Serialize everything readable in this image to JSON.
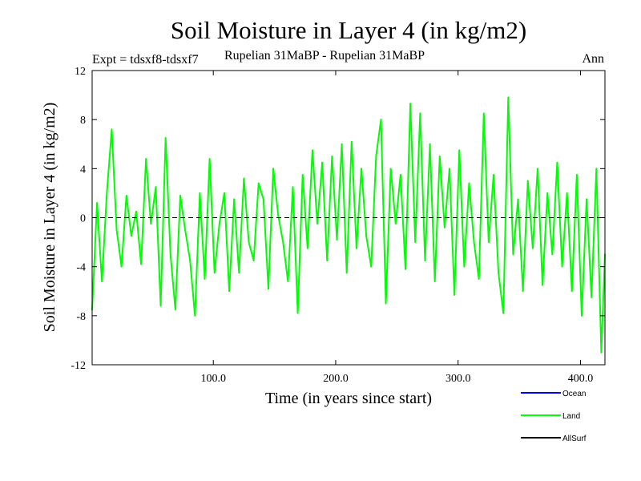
{
  "chart_data": {
    "type": "line",
    "title": "Soil Moisture in Layer 4 (in kg/m2)",
    "subtitle_left": "Expt = tdsxf8-tdsxf7",
    "subtitle_center": "Rupelian  31MaBP - Rupelian  31MaBP",
    "subtitle_right": "Ann",
    "xlabel": "Time (in years since start)",
    "ylabel": "Soil Moisture in Layer 4 (in kg/m2)",
    "xlim": [
      1,
      420
    ],
    "ylim": [
      -12,
      12
    ],
    "xticks": [
      100,
      200,
      300,
      400
    ],
    "xtick_labels": [
      "100.0",
      "200.0",
      "300.0",
      "400.0"
    ],
    "yticks": [
      -12,
      -8,
      -4,
      0,
      4,
      8,
      12
    ],
    "ytick_labels": [
      "-12",
      "-8",
      "-4",
      "0",
      "4",
      "8",
      "12"
    ],
    "zero_line": true,
    "legend": {
      "placement": "bottom-right",
      "entries": [
        {
          "label": "Ocean",
          "color": "#0000ff"
        },
        {
          "label": "Land",
          "color": "#00ff00"
        },
        {
          "label": "AllSurf",
          "color": "#000000"
        }
      ]
    },
    "series": [
      {
        "name": "Land",
        "color": "#00ff00",
        "x": [
          1,
          5,
          9,
          13,
          17,
          21,
          25,
          29,
          33,
          37,
          41,
          45,
          49,
          53,
          57,
          61,
          65,
          69,
          73,
          77,
          81,
          85,
          89,
          93,
          97,
          101,
          105,
          109,
          113,
          117,
          121,
          125,
          129,
          133,
          137,
          141,
          145,
          149,
          153,
          157,
          161,
          165,
          169,
          173,
          177,
          181,
          185,
          189,
          193,
          197,
          201,
          205,
          209,
          213,
          217,
          221,
          225,
          229,
          233,
          237,
          241,
          245,
          249,
          253,
          257,
          261,
          265,
          269,
          273,
          277,
          281,
          285,
          289,
          293,
          297,
          301,
          305,
          309,
          313,
          317,
          321,
          325,
          329,
          333,
          337,
          341,
          345,
          349,
          353,
          357,
          361,
          365,
          369,
          373,
          377,
          381,
          385,
          389,
          393,
          397,
          401,
          405,
          409,
          413,
          417,
          420
        ],
        "values": [
          -7.5,
          1.2,
          -5.2,
          2.0,
          7.2,
          -1.0,
          -4.0,
          1.8,
          -1.5,
          0.5,
          -3.8,
          4.8,
          -0.5,
          2.5,
          -7.2,
          6.5,
          -3.0,
          -7.5,
          1.8,
          -1.0,
          -3.5,
          -8.0,
          2.0,
          -5.0,
          4.8,
          -4.5,
          -0.5,
          2.0,
          -6.0,
          1.5,
          -4.5,
          3.2,
          -2.0,
          -3.5,
          2.8,
          1.5,
          -5.8,
          4.0,
          0.2,
          -2.0,
          -5.2,
          2.5,
          -7.8,
          3.5,
          -2.5,
          5.5,
          -0.5,
          4.5,
          -3.5,
          5.0,
          -1.8,
          6.0,
          -4.5,
          6.2,
          -2.5,
          4.0,
          -1.5,
          -4.0,
          5.0,
          8.0,
          -7.0,
          4.0,
          -0.5,
          3.5,
          -4.2,
          9.3,
          -2.0,
          8.5,
          -3.5,
          6.0,
          -5.2,
          5.0,
          -0.8,
          4.0,
          -6.3,
          5.5,
          -4.0,
          2.8,
          -2.0,
          -5.0,
          8.5,
          -2.0,
          3.5,
          -4.5,
          -7.8,
          9.8,
          -3.0,
          1.5,
          -6.0,
          3.0,
          -2.5,
          4.0,
          -5.5,
          2.0,
          -3.0,
          4.5,
          -4.0,
          2.0,
          -6.0,
          3.5,
          -8.0,
          1.5,
          -6.5,
          4.0,
          -11.0,
          -3.0
        ]
      }
    ]
  }
}
